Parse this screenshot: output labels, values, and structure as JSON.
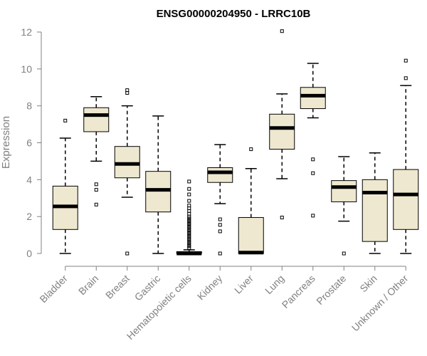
{
  "chart_data": {
    "type": "boxplot",
    "title": "ENSG00000204950 - LRRC10B",
    "ylabel": "Expression",
    "xlabel": "",
    "ylim": [
      0,
      12
    ],
    "yticks": [
      0,
      2,
      4,
      6,
      8,
      10,
      12
    ],
    "grid": false,
    "box_color": "#EEE8D0",
    "line_color": "#000000",
    "axis_color": "#808080",
    "categories": [
      "Bladder",
      "Brain",
      "Breast",
      "Gastric",
      "Hematopoietic cells",
      "Kidney",
      "Liver",
      "Lung",
      "Pancreas",
      "Prostate",
      "Skin",
      "Unknown / Other"
    ],
    "boxes": [
      {
        "category": "Bladder",
        "whisker_low": 0.0,
        "q1": 1.3,
        "median": 2.55,
        "q3": 3.65,
        "whisker_high": 6.25,
        "outliers": [
          7.2
        ]
      },
      {
        "category": "Brain",
        "whisker_low": 5.0,
        "q1": 6.6,
        "median": 7.5,
        "q3": 7.9,
        "whisker_high": 8.5,
        "outliers": [
          3.75,
          3.45,
          2.65
        ]
      },
      {
        "category": "Breast",
        "whisker_low": 3.05,
        "q1": 4.1,
        "median": 4.85,
        "q3": 5.8,
        "whisker_high": 8.0,
        "outliers": [
          8.85,
          8.7,
          0.0
        ]
      },
      {
        "category": "Gastric",
        "whisker_low": 0.0,
        "q1": 2.25,
        "median": 3.45,
        "q3": 4.45,
        "whisker_high": 7.45,
        "outliers": []
      },
      {
        "category": "Hematopoietic cells",
        "whisker_low": 0.0,
        "q1": 0.0,
        "median": 0.0,
        "q3": 0.1,
        "whisker_high": 0.2,
        "outliers": [
          3.9,
          3.5,
          3.2,
          2.85,
          2.6,
          2.45,
          2.3,
          2.15,
          2.0,
          1.9,
          1.8,
          1.7,
          1.6,
          1.5,
          1.4,
          1.3,
          1.2,
          1.1,
          1.0,
          0.9,
          0.8,
          0.7,
          0.6,
          0.5,
          0.4,
          0.3
        ]
      },
      {
        "category": "Kidney",
        "whisker_low": 2.7,
        "q1": 3.85,
        "median": 4.4,
        "q3": 4.65,
        "whisker_high": 5.9,
        "outliers": [
          1.85,
          1.55,
          1.2,
          0.0
        ]
      },
      {
        "category": "Liver",
        "whisker_low": 0.0,
        "q1": 0.0,
        "median": 0.05,
        "q3": 1.95,
        "whisker_high": 4.6,
        "outliers": [
          5.65
        ]
      },
      {
        "category": "Lung",
        "whisker_low": 4.05,
        "q1": 5.65,
        "median": 6.8,
        "q3": 7.55,
        "whisker_high": 8.65,
        "outliers": [
          12.05,
          1.95
        ]
      },
      {
        "category": "Pancreas",
        "whisker_low": 7.35,
        "q1": 7.85,
        "median": 8.55,
        "q3": 9.0,
        "whisker_high": 10.3,
        "outliers": [
          5.1,
          4.35,
          2.05
        ]
      },
      {
        "category": "Prostate",
        "whisker_low": 1.75,
        "q1": 2.8,
        "median": 3.6,
        "q3": 3.95,
        "whisker_high": 5.25,
        "outliers": [
          0.0
        ]
      },
      {
        "category": "Skin",
        "whisker_low": 0.0,
        "q1": 0.65,
        "median": 3.3,
        "q3": 4.0,
        "whisker_high": 5.45,
        "outliers": []
      },
      {
        "category": "Unknown / Other",
        "whisker_low": 0.0,
        "q1": 1.3,
        "median": 3.2,
        "q3": 4.55,
        "whisker_high": 9.1,
        "outliers": [
          10.45,
          9.5
        ]
      }
    ]
  }
}
